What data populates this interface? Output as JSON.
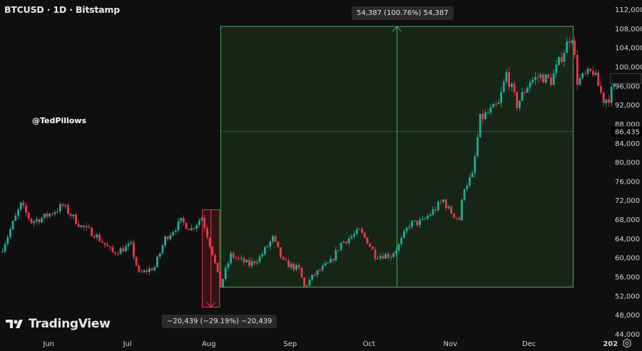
{
  "header": {
    "title": "BTCUSD · 1D · Bitstamp"
  },
  "watermark": "@TedPillows",
  "logo": {
    "text": "TradingView"
  },
  "measure_up": {
    "label": "54,387 (100.76%) 54,387",
    "from": 53800,
    "to": 108400,
    "start": "2024-08-05",
    "end": "2024-12-17",
    "color": "#4caf50"
  },
  "measure_down": {
    "label": "−20,439 (−29.19%) −20,439",
    "from": 70000,
    "to": 49600,
    "start": "2024-07-29",
    "end": "2024-08-04",
    "color": "#f23645"
  },
  "crosshair_price": "86,435",
  "chart_data": {
    "type": "candlestick",
    "title": "BTCUSD · 1D · Bitstamp",
    "ylim": [
      44000,
      112000
    ],
    "y_ticks": [
      "112,000",
      "108,000",
      "104,000",
      "100,000",
      "96,000",
      "92,000",
      "88,000",
      "84,000",
      "80,000",
      "76,000",
      "72,000",
      "68,000",
      "64,000",
      "60,000",
      "56,000",
      "52,000",
      "48,000",
      "44,000"
    ],
    "y_tick_values": [
      112000,
      108000,
      104000,
      100000,
      96000,
      92000,
      88000,
      84000,
      80000,
      76000,
      72000,
      68000,
      64000,
      60000,
      56000,
      52000,
      48000,
      44000
    ],
    "x_ticks": [
      {
        "label": "Jun",
        "date": "2024-06-01"
      },
      {
        "label": "Jul",
        "date": "2024-07-01"
      },
      {
        "label": "Aug",
        "date": "2024-08-01"
      },
      {
        "label": "Sep",
        "date": "2024-09-01"
      },
      {
        "label": "Oct",
        "date": "2024-10-01"
      },
      {
        "label": "Nov",
        "date": "2024-11-01"
      },
      {
        "label": "Dec",
        "date": "2024-12-01"
      },
      {
        "label": "202",
        "date": "2025-01-01"
      }
    ],
    "x_range": [
      "2024-05-14",
      "2025-01-03"
    ],
    "up_color": "#22ab94",
    "down_color": "#f23645",
    "close_anchors": [
      [
        "2024-05-14",
        62000
      ],
      [
        "2024-05-21",
        71000
      ],
      [
        "2024-05-25",
        67500
      ],
      [
        "2024-05-30",
        68500
      ],
      [
        "2024-06-06",
        70800
      ],
      [
        "2024-06-13",
        66500
      ],
      [
        "2024-06-18",
        65000
      ],
      [
        "2024-06-25",
        61000
      ],
      [
        "2024-07-02",
        62500
      ],
      [
        "2024-07-05",
        56500
      ],
      [
        "2024-07-07",
        57000
      ],
      [
        "2024-07-11",
        58000
      ],
      [
        "2024-07-15",
        64000
      ],
      [
        "2024-07-21",
        67500
      ],
      [
        "2024-07-25",
        66000
      ],
      [
        "2024-07-29",
        68500
      ],
      [
        "2024-08-02",
        61000
      ],
      [
        "2024-08-05",
        54000
      ],
      [
        "2024-08-09",
        60500
      ],
      [
        "2024-08-16",
        58500
      ],
      [
        "2024-08-20",
        60000
      ],
      [
        "2024-08-25",
        64000
      ],
      [
        "2024-08-29",
        59000
      ],
      [
        "2024-09-04",
        57500
      ],
      [
        "2024-09-06",
        53800
      ],
      [
        "2024-09-10",
        56500
      ],
      [
        "2024-09-16",
        59000
      ],
      [
        "2024-09-20",
        63000
      ],
      [
        "2024-09-27",
        65500
      ],
      [
        "2024-09-30",
        63500
      ],
      [
        "2024-10-03",
        60500
      ],
      [
        "2024-10-09",
        60500
      ],
      [
        "2024-10-12",
        62500
      ],
      [
        "2024-10-16",
        67000
      ],
      [
        "2024-10-21",
        67500
      ],
      [
        "2024-10-29",
        72000
      ],
      [
        "2024-10-31",
        70000
      ],
      [
        "2024-11-04",
        68000
      ],
      [
        "2024-11-06",
        75000
      ],
      [
        "2024-11-09",
        77000
      ],
      [
        "2024-11-12",
        89000
      ],
      [
        "2024-11-19",
        92000
      ],
      [
        "2024-11-22",
        98500
      ],
      [
        "2024-11-26",
        92000
      ],
      [
        "2024-12-01",
        97000
      ],
      [
        "2024-12-05",
        98000
      ],
      [
        "2024-12-09",
        97000
      ],
      [
        "2024-12-16",
        106000
      ],
      [
        "2024-12-17",
        106500
      ],
      [
        "2024-12-19",
        97000
      ],
      [
        "2024-12-25",
        99000
      ],
      [
        "2024-12-29",
        93000
      ],
      [
        "2024-12-31",
        93500
      ],
      [
        "2025-01-03",
        97500
      ]
    ]
  }
}
